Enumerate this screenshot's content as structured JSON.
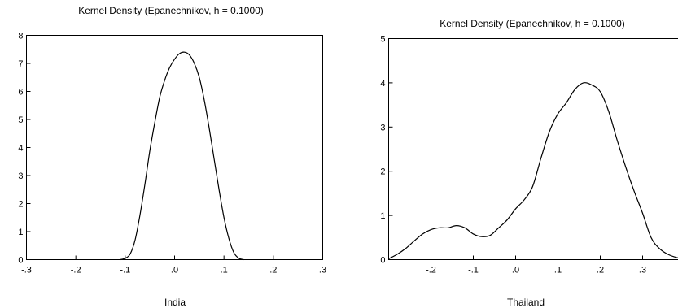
{
  "chart_data": [
    {
      "type": "line",
      "title": "Kernel Density (Epanechnikov, h = 0.1000)",
      "xlabel": "India",
      "ylabel": "",
      "xlim": [
        -0.3,
        0.3
      ],
      "ylim": [
        0,
        8
      ],
      "xticks": [
        {
          "value": -0.3,
          "label": "-.3"
        },
        {
          "value": -0.2,
          "label": "-.2"
        },
        {
          "value": -0.1,
          "label": "-.1"
        },
        {
          "value": 0.0,
          "label": ".0"
        },
        {
          "value": 0.1,
          "label": ".1"
        },
        {
          "value": 0.2,
          "label": ".2"
        },
        {
          "value": 0.3,
          "label": ".3"
        }
      ],
      "yticks": [
        {
          "value": 0,
          "label": "0"
        },
        {
          "value": 1,
          "label": "1"
        },
        {
          "value": 2,
          "label": "2"
        },
        {
          "value": 3,
          "label": "3"
        },
        {
          "value": 4,
          "label": "4"
        },
        {
          "value": 5,
          "label": "5"
        },
        {
          "value": 6,
          "label": "6"
        },
        {
          "value": 7,
          "label": "7"
        },
        {
          "value": 8,
          "label": "8"
        }
      ],
      "grid": false,
      "series": [
        {
          "x": [
            -0.11,
            -0.1,
            -0.09,
            -0.08,
            -0.07,
            -0.06,
            -0.05,
            -0.04,
            -0.03,
            -0.02,
            -0.01,
            0.0,
            0.01,
            0.02,
            0.03,
            0.04,
            0.05,
            0.06,
            0.07,
            0.08,
            0.09,
            0.1,
            0.11,
            0.12,
            0.13,
            0.14
          ],
          "y": [
            0.0,
            0.05,
            0.2,
            0.7,
            1.6,
            2.7,
            3.9,
            4.9,
            5.8,
            6.4,
            6.85,
            7.15,
            7.35,
            7.4,
            7.3,
            7.0,
            6.5,
            5.7,
            4.7,
            3.6,
            2.5,
            1.5,
            0.75,
            0.25,
            0.05,
            0.0
          ]
        }
      ]
    },
    {
      "type": "line",
      "title": "Kernel Density (Epanechnikov, h = 0.1000)",
      "xlabel": "Thailand",
      "ylabel": "",
      "xlim": [
        -0.3,
        0.4
      ],
      "ylim": [
        0,
        5
      ],
      "xticks": [
        {
          "value": -0.2,
          "label": "-.2"
        },
        {
          "value": -0.1,
          "label": "-.1"
        },
        {
          "value": 0.0,
          "label": ".0"
        },
        {
          "value": 0.1,
          "label": ".1"
        },
        {
          "value": 0.2,
          "label": ".2"
        },
        {
          "value": 0.3,
          "label": ".3"
        }
      ],
      "yticks": [
        {
          "value": 0,
          "label": "0"
        },
        {
          "value": 1,
          "label": "1"
        },
        {
          "value": 2,
          "label": "2"
        },
        {
          "value": 3,
          "label": "3"
        },
        {
          "value": 4,
          "label": "4"
        },
        {
          "value": 5,
          "label": "5"
        }
      ],
      "grid": false,
      "series": [
        {
          "x": [
            -0.3,
            -0.28,
            -0.26,
            -0.24,
            -0.22,
            -0.2,
            -0.18,
            -0.16,
            -0.14,
            -0.12,
            -0.1,
            -0.08,
            -0.06,
            -0.04,
            -0.02,
            0.0,
            0.02,
            0.04,
            0.06,
            0.08,
            0.1,
            0.12,
            0.14,
            0.16,
            0.18,
            0.2,
            0.22,
            0.24,
            0.26,
            0.28,
            0.3,
            0.32,
            0.34,
            0.36,
            0.38,
            0.4
          ],
          "y": [
            0.02,
            0.12,
            0.25,
            0.42,
            0.58,
            0.68,
            0.72,
            0.72,
            0.77,
            0.72,
            0.58,
            0.52,
            0.55,
            0.72,
            0.9,
            1.15,
            1.35,
            1.65,
            2.3,
            2.9,
            3.3,
            3.55,
            3.85,
            4.0,
            3.95,
            3.8,
            3.35,
            2.7,
            2.1,
            1.55,
            1.05,
            0.5,
            0.25,
            0.12,
            0.05,
            0.02
          ]
        }
      ]
    }
  ]
}
